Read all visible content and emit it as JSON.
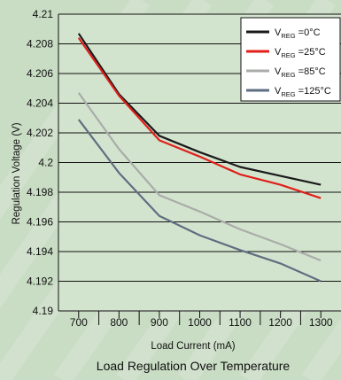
{
  "chart_data": {
    "type": "line",
    "title": "Load Regulation Over Temperature",
    "xlabel": "Load Current (mA)",
    "ylabel": "Regulation Voltage (V)",
    "x": [
      700,
      800,
      900,
      1000,
      1100,
      1200,
      1300
    ],
    "xlim": [
      650,
      1350
    ],
    "ylim": [
      4.19,
      4.21
    ],
    "yticks": [
      4.19,
      4.192,
      4.194,
      4.196,
      4.198,
      4.2,
      4.202,
      4.204,
      4.206,
      4.208,
      4.21
    ],
    "ytick_labels": [
      "4.19",
      "4.192",
      "4.194",
      "4.196",
      "4.198",
      "4.2",
      "4.202",
      "4.204",
      "4.206",
      "4.208",
      "4.21"
    ],
    "xtick_labels": [
      "700",
      "800",
      "900",
      "1000",
      "1100",
      "1200",
      "1300"
    ],
    "grid": "horizontal",
    "legend_position": "top-right",
    "series": [
      {
        "name_main": "V",
        "name_sub": "REG",
        "name_rest": " =0°C",
        "color": "#1a1a1a",
        "values": [
          4.2087,
          4.2046,
          4.2018,
          4.2007,
          4.1997,
          4.1991,
          4.1985
        ]
      },
      {
        "name_main": "V",
        "name_sub": "REG",
        "name_rest": " =25°C",
        "color": "#e0201a",
        "values": [
          4.2084,
          4.2045,
          4.2015,
          4.2004,
          4.1992,
          4.1985,
          4.1976
        ]
      },
      {
        "name_main": "V",
        "name_sub": "REG",
        "name_rest": " =85°C",
        "color": "#a9aca9",
        "values": [
          4.2047,
          4.2009,
          4.1978,
          4.1967,
          4.1955,
          4.1945,
          4.1934
        ]
      },
      {
        "name_main": "V",
        "name_sub": "REG",
        "name_rest": " =125°C",
        "color": "#5f6e82",
        "values": [
          4.2029,
          4.1993,
          4.1964,
          4.1951,
          4.1941,
          4.1932,
          4.192
        ]
      }
    ]
  }
}
